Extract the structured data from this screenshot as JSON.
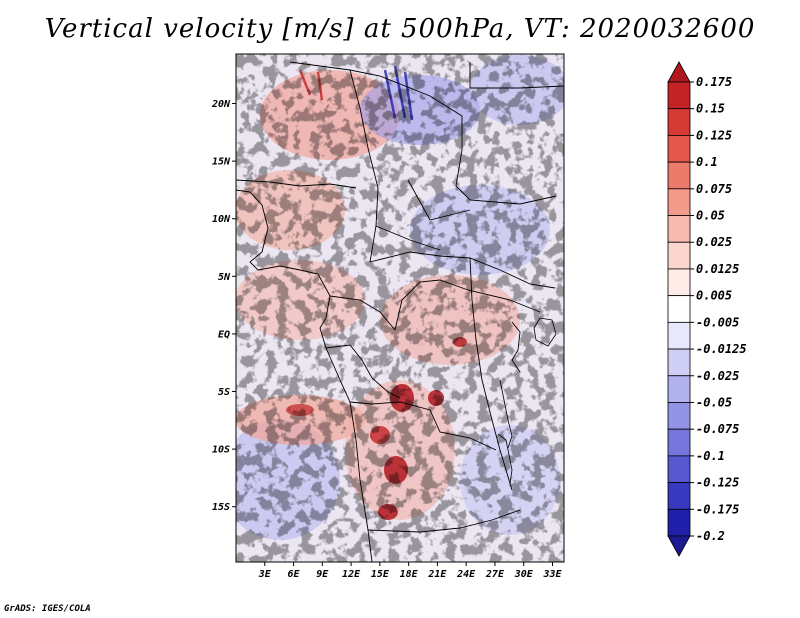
{
  "title": "Vertical velocity [m/s] at 500hPa, VT: 2020032600",
  "credit": "GrADS: IGES/COLA",
  "map": {
    "lat_ticks": [
      "20N",
      "15N",
      "10N",
      "5N",
      "EQ",
      "5S",
      "10S",
      "15S"
    ],
    "lat_values": [
      20,
      15,
      10,
      5,
      0,
      -5,
      -10,
      -15
    ],
    "lon_ticks": [
      "3E",
      "6E",
      "9E",
      "12E",
      "15E",
      "18E",
      "21E",
      "24E",
      "27E",
      "30E",
      "33E"
    ],
    "lon_values": [
      3,
      6,
      9,
      12,
      15,
      18,
      21,
      24,
      27,
      30,
      33
    ],
    "lat_range": [
      -19.8,
      24.3
    ],
    "lon_range": [
      0,
      34.2
    ]
  },
  "colorbar": {
    "labels": [
      "0.175",
      "0.15",
      "0.125",
      "0.1",
      "0.075",
      "0.05",
      "0.025",
      "0.0125",
      "0.005",
      "-0.005",
      "-0.0125",
      "-0.025",
      "-0.05",
      "-0.075",
      "-0.1",
      "-0.125",
      "-0.175",
      "-0.2"
    ],
    "colors": [
      "#b0181e",
      "#c32327",
      "#d63a35",
      "#e3574c",
      "#ed7b6c",
      "#f49a8b",
      "#f8baae",
      "#fbd6ce",
      "#fdece7",
      "#ffffff",
      "#e8e8fb",
      "#cfcff6",
      "#b2b2ef",
      "#9494e6",
      "#7676dc",
      "#5757cf",
      "#3939bf",
      "#2020aa",
      "#1a1a92"
    ]
  },
  "colors": {
    "frame": "#000000",
    "background": "#ffffff"
  }
}
